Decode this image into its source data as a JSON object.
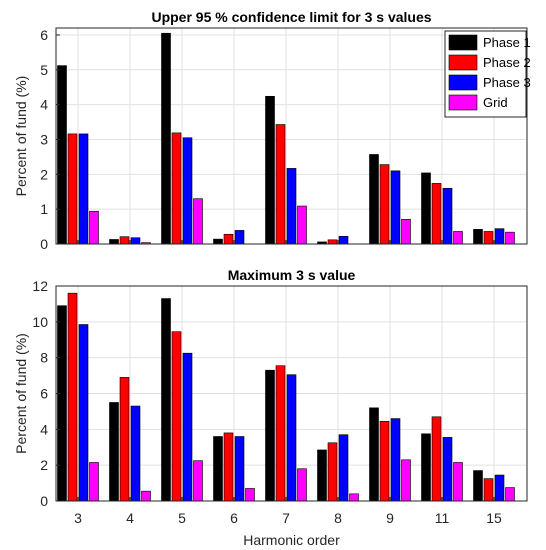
{
  "chart_data": [
    {
      "type": "bar",
      "title": "Upper 95 % confidence limit for 3 s values",
      "xlabel": "",
      "ylabel": "Percent of fund (%)",
      "categories": [
        "3",
        "4",
        "5",
        "6",
        "7",
        "8",
        "9",
        "11",
        "15"
      ],
      "ylim": [
        0,
        6.2
      ],
      "yticks": [
        0,
        1,
        2,
        3,
        4,
        5,
        6
      ],
      "grid": true,
      "legend_position": "top-right",
      "series": [
        {
          "name": "Phase 1",
          "color": "#000000",
          "values": [
            5.12,
            0.13,
            6.05,
            0.14,
            4.24,
            0.06,
            2.57,
            2.04,
            0.42
          ]
        },
        {
          "name": "Phase 2",
          "color": "#ff0000",
          "values": [
            3.16,
            0.21,
            3.19,
            0.28,
            3.43,
            0.12,
            2.28,
            1.74,
            0.36
          ]
        },
        {
          "name": "Phase 3",
          "color": "#0000ff",
          "values": [
            3.16,
            0.18,
            3.05,
            0.39,
            2.17,
            0.22,
            2.1,
            1.6,
            0.44
          ]
        },
        {
          "name": "Grid",
          "color": "#ff00ff",
          "values": [
            0.94,
            0.04,
            1.3,
            0.0,
            1.09,
            0.0,
            0.71,
            0.36,
            0.34
          ]
        }
      ]
    },
    {
      "type": "bar",
      "title": "Maximum 3 s value",
      "xlabel": "Harmonic order",
      "ylabel": "Percent of fund (%)",
      "categories": [
        "3",
        "4",
        "5",
        "6",
        "7",
        "8",
        "9",
        "11",
        "15"
      ],
      "ylim": [
        0,
        12
      ],
      "yticks": [
        0,
        2,
        4,
        6,
        8,
        10,
        12
      ],
      "grid": true,
      "series": [
        {
          "name": "Phase 1",
          "color": "#000000",
          "values": [
            10.9,
            5.5,
            11.3,
            3.6,
            7.3,
            2.85,
            5.2,
            3.75,
            1.7
          ]
        },
        {
          "name": "Phase 2",
          "color": "#ff0000",
          "values": [
            11.6,
            6.9,
            9.45,
            3.8,
            7.55,
            3.25,
            4.45,
            4.7,
            1.25
          ]
        },
        {
          "name": "Phase 3",
          "color": "#0000ff",
          "values": [
            9.85,
            5.3,
            8.25,
            3.6,
            7.05,
            3.7,
            4.6,
            3.55,
            1.45
          ]
        },
        {
          "name": "Grid",
          "color": "#ff00ff",
          "values": [
            2.15,
            0.55,
            2.25,
            0.7,
            1.8,
            0.4,
            2.3,
            2.15,
            0.75
          ]
        }
      ]
    }
  ]
}
